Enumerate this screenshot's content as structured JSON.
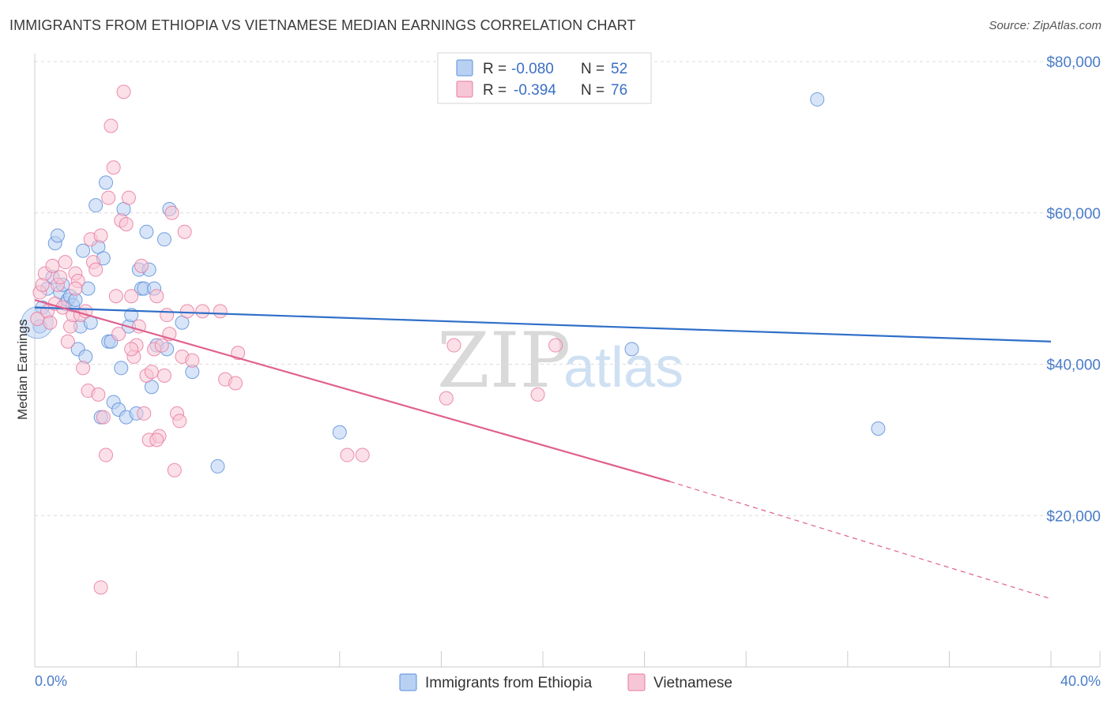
{
  "header": {
    "title": "IMMIGRANTS FROM ETHIOPIA VS VIETNAMESE MEDIAN EARNINGS CORRELATION CHART",
    "source": "Source: ZipAtlas.com"
  },
  "colors": {
    "blue": "#5b8fd9",
    "blue_fill": "#b8d0f2",
    "blue_line": "#2f6fc9",
    "pink": "#e87aa0",
    "pink_fill": "#f7c6d6",
    "pink_line": "#e0608e",
    "grid": "#dcdcdc",
    "tick_text": "#4a7cc9"
  },
  "legend": {
    "rows": [
      {
        "r_label": "R =",
        "r_value": "-0.080",
        "n_label": "N =",
        "n_value": "52",
        "series": "blue"
      },
      {
        "r_label": "R =",
        "r_value": "-0.394",
        "n_label": "N =",
        "n_value": "76",
        "series": "pink"
      }
    ]
  },
  "watermark": {
    "zip": "ZIP",
    "atlas": "atlas"
  },
  "chart_data": {
    "type": "scatter",
    "title": "IMMIGRANTS FROM ETHIOPIA VS VIETNAMESE MEDIAN EARNINGS CORRELATION CHART",
    "xlabel": "",
    "ylabel": "Median Earnings",
    "xlim": [
      0,
      40
    ],
    "ylim": [
      0,
      80000
    ],
    "x_tick_labels": [
      "0.0%",
      "40.0%"
    ],
    "y_ticks": [
      {
        "value": 20000,
        "label": "$20,000"
      },
      {
        "value": 40000,
        "label": "$40,000"
      },
      {
        "value": 60000,
        "label": "$60,000"
      },
      {
        "value": 80000,
        "label": "$80,000"
      }
    ],
    "grid": true,
    "series": [
      {
        "name": "Immigrants from Ethiopia",
        "color": "blue",
        "R": -0.08,
        "N": 52,
        "trend": {
          "x0": 0,
          "y0": 47500,
          "x1": 40,
          "y1": 43000,
          "dashed_from": 40
        },
        "points": [
          [
            0.2,
            45000
          ],
          [
            0.3,
            47500
          ],
          [
            0.5,
            50000
          ],
          [
            0.7,
            51500
          ],
          [
            0.8,
            56000
          ],
          [
            0.9,
            57000
          ],
          [
            1.0,
            49500
          ],
          [
            1.1,
            50500
          ],
          [
            1.2,
            48000
          ],
          [
            1.3,
            48500
          ],
          [
            1.4,
            49000
          ],
          [
            1.5,
            47800
          ],
          [
            1.6,
            48500
          ],
          [
            1.7,
            42000
          ],
          [
            1.8,
            45000
          ],
          [
            1.9,
            55000
          ],
          [
            2.0,
            41000
          ],
          [
            2.1,
            50000
          ],
          [
            2.2,
            45500
          ],
          [
            2.4,
            61000
          ],
          [
            2.5,
            55500
          ],
          [
            2.6,
            33000
          ],
          [
            2.7,
            54000
          ],
          [
            2.8,
            64000
          ],
          [
            2.9,
            43000
          ],
          [
            3.0,
            43000
          ],
          [
            3.1,
            35000
          ],
          [
            3.3,
            34000
          ],
          [
            3.4,
            39500
          ],
          [
            3.5,
            60500
          ],
          [
            3.6,
            33000
          ],
          [
            3.7,
            45000
          ],
          [
            3.8,
            46500
          ],
          [
            4.0,
            33500
          ],
          [
            4.1,
            52500
          ],
          [
            4.2,
            50000
          ],
          [
            4.3,
            50000
          ],
          [
            4.4,
            57500
          ],
          [
            4.5,
            52500
          ],
          [
            4.6,
            37000
          ],
          [
            4.7,
            50000
          ],
          [
            4.8,
            42500
          ],
          [
            5.1,
            56500
          ],
          [
            5.2,
            42000
          ],
          [
            5.3,
            60500
          ],
          [
            5.8,
            45500
          ],
          [
            6.2,
            39000
          ],
          [
            7.2,
            26500
          ],
          [
            12.0,
            31000
          ],
          [
            23.5,
            42000
          ],
          [
            30.8,
            75000
          ],
          [
            33.2,
            31500
          ]
        ]
      },
      {
        "name": "Vietnamese",
        "color": "pink",
        "R": -0.394,
        "N": 76,
        "trend": {
          "x0": 0,
          "y0": 48500,
          "x1": 25,
          "y1": 24500,
          "dashed_to_x": 40,
          "dashed_to_y": 9000
        },
        "points": [
          [
            0.1,
            46000
          ],
          [
            0.2,
            49500
          ],
          [
            0.3,
            50500
          ],
          [
            0.4,
            52000
          ],
          [
            0.5,
            47000
          ],
          [
            0.6,
            45500
          ],
          [
            0.7,
            53000
          ],
          [
            0.8,
            48000
          ],
          [
            0.9,
            50500
          ],
          [
            1.0,
            51500
          ],
          [
            1.1,
            47500
          ],
          [
            1.2,
            53500
          ],
          [
            1.3,
            43000
          ],
          [
            1.4,
            45000
          ],
          [
            1.5,
            46500
          ],
          [
            1.6,
            52000
          ],
          [
            1.7,
            51000
          ],
          [
            1.8,
            46500
          ],
          [
            1.9,
            39500
          ],
          [
            2.0,
            47000
          ],
          [
            2.1,
            36500
          ],
          [
            2.2,
            56500
          ],
          [
            2.3,
            53500
          ],
          [
            2.4,
            52500
          ],
          [
            2.5,
            36000
          ],
          [
            2.6,
            57000
          ],
          [
            2.7,
            33000
          ],
          [
            2.8,
            28000
          ],
          [
            2.9,
            62000
          ],
          [
            3.0,
            71500
          ],
          [
            3.1,
            66000
          ],
          [
            3.2,
            49000
          ],
          [
            3.3,
            44000
          ],
          [
            3.4,
            59000
          ],
          [
            3.5,
            76000
          ],
          [
            3.6,
            58500
          ],
          [
            3.7,
            62000
          ],
          [
            3.8,
            49000
          ],
          [
            3.9,
            41000
          ],
          [
            4.0,
            42500
          ],
          [
            4.1,
            45000
          ],
          [
            4.2,
            53000
          ],
          [
            4.3,
            33500
          ],
          [
            4.4,
            38500
          ],
          [
            4.5,
            30000
          ],
          [
            4.6,
            39000
          ],
          [
            4.7,
            42000
          ],
          [
            4.8,
            49000
          ],
          [
            4.9,
            30500
          ],
          [
            5.0,
            42500
          ],
          [
            5.1,
            38500
          ],
          [
            5.2,
            46500
          ],
          [
            5.3,
            44000
          ],
          [
            5.4,
            60000
          ],
          [
            5.5,
            26000
          ],
          [
            5.6,
            33500
          ],
          [
            5.7,
            32500
          ],
          [
            5.8,
            41000
          ],
          [
            5.9,
            57500
          ],
          [
            6.0,
            47000
          ],
          [
            6.2,
            40500
          ],
          [
            6.6,
            47000
          ],
          [
            7.3,
            47000
          ],
          [
            7.5,
            38000
          ],
          [
            7.9,
            37500
          ],
          [
            8.0,
            41500
          ],
          [
            12.3,
            28000
          ],
          [
            12.9,
            28000
          ],
          [
            19.8,
            36000
          ],
          [
            20.5,
            42500
          ],
          [
            16.5,
            42500
          ],
          [
            16.2,
            35500
          ],
          [
            4.8,
            30000
          ],
          [
            2.6,
            10500
          ],
          [
            1.6,
            50000
          ],
          [
            3.8,
            42000
          ]
        ]
      }
    ]
  },
  "bottom_legend": {
    "items": [
      {
        "label": "Immigrants from Ethiopia",
        "series": "blue"
      },
      {
        "label": "Vietnamese",
        "series": "pink"
      }
    ]
  }
}
